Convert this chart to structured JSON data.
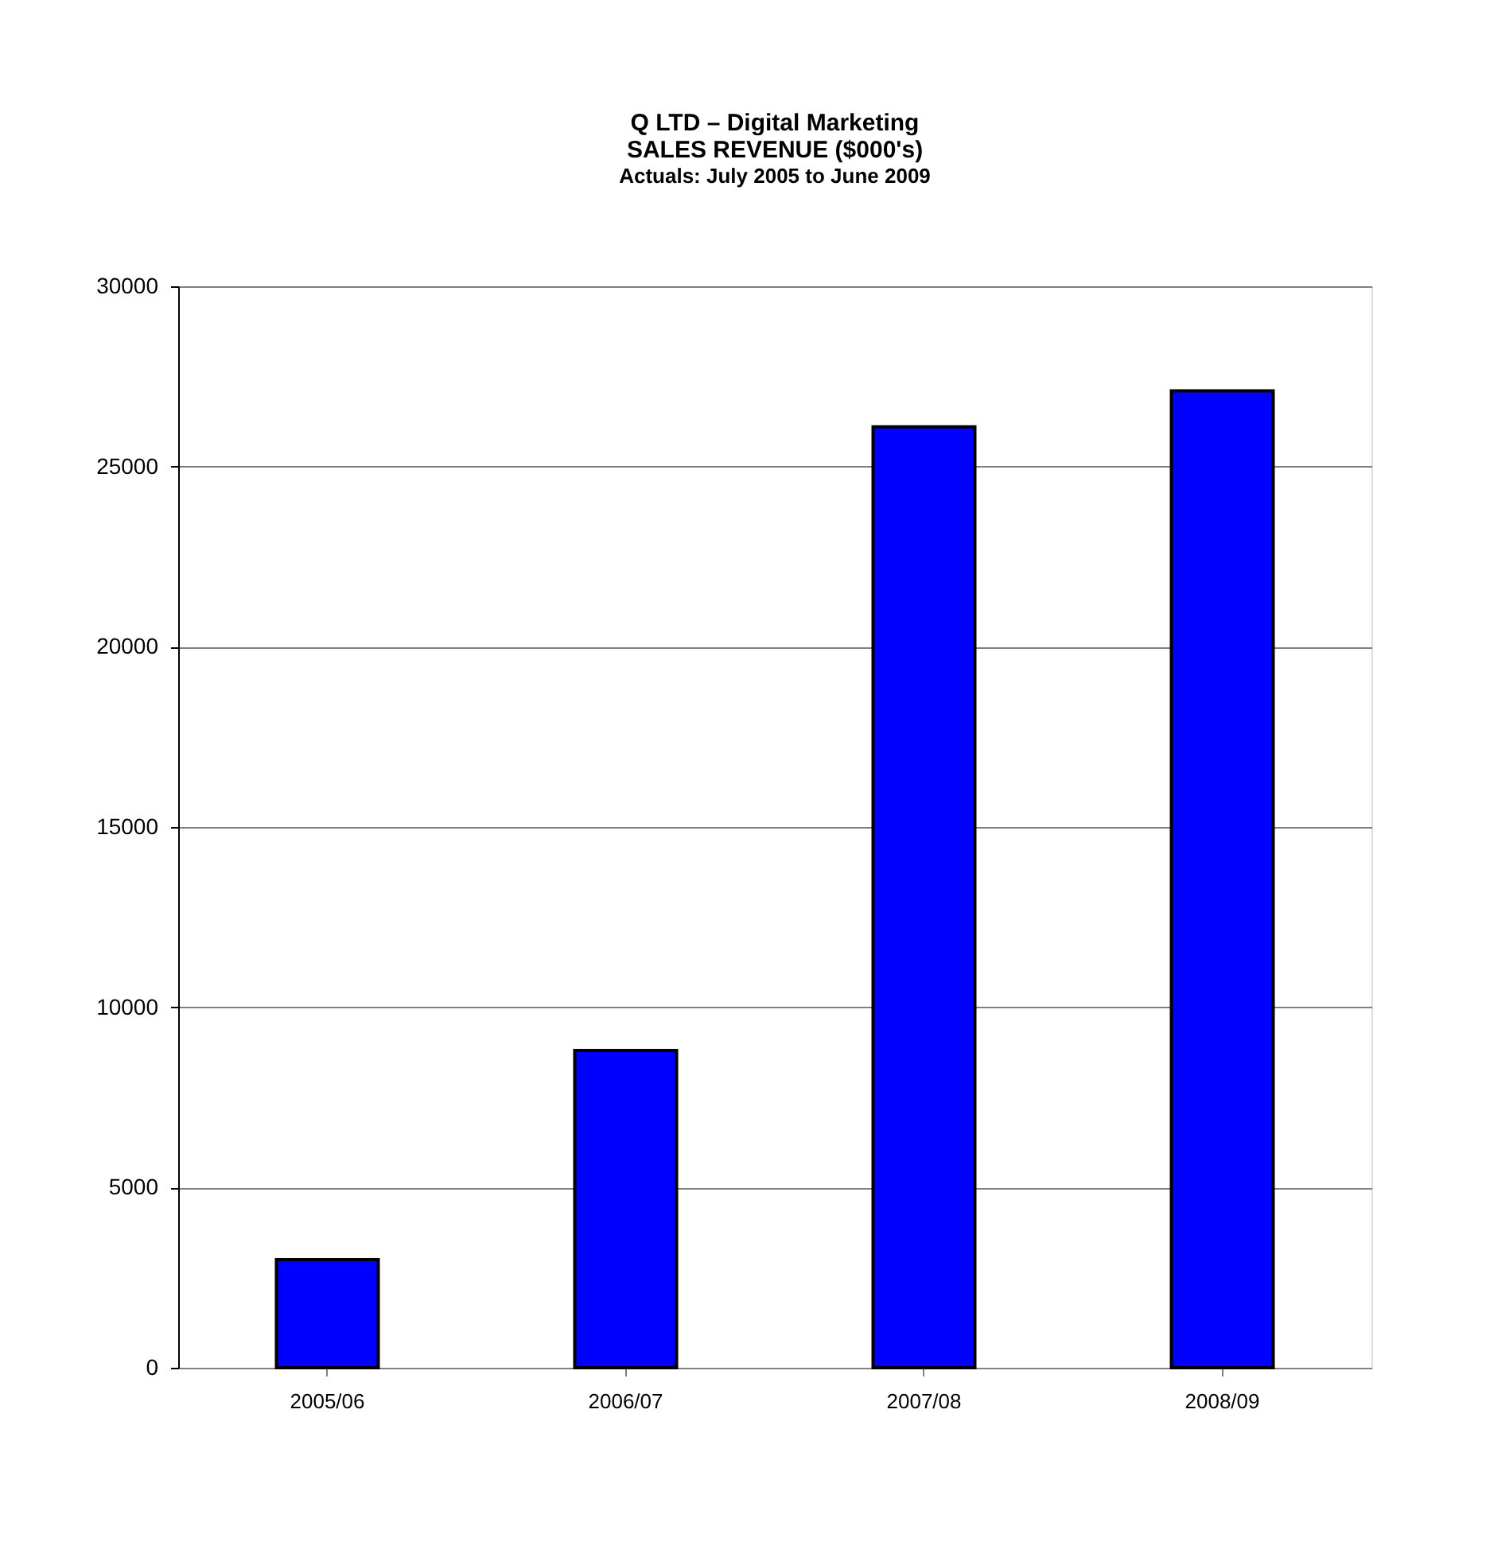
{
  "chart_data": {
    "type": "bar",
    "title": "Q LTD – Digital Marketing\nSALES REVENUE ($000's)",
    "subtitle": "Actuals:  July 2005 to  June 2009",
    "categories": [
      "2005/06",
      "2006/07",
      "2007/08",
      "2008/09"
    ],
    "values": [
      3000,
      8800,
      26100,
      27100
    ],
    "color": "#0000ff",
    "ylim": [
      0,
      30000
    ],
    "yticks": [
      0,
      5000,
      10000,
      15000,
      20000,
      25000,
      30000
    ],
    "grid": "y"
  }
}
